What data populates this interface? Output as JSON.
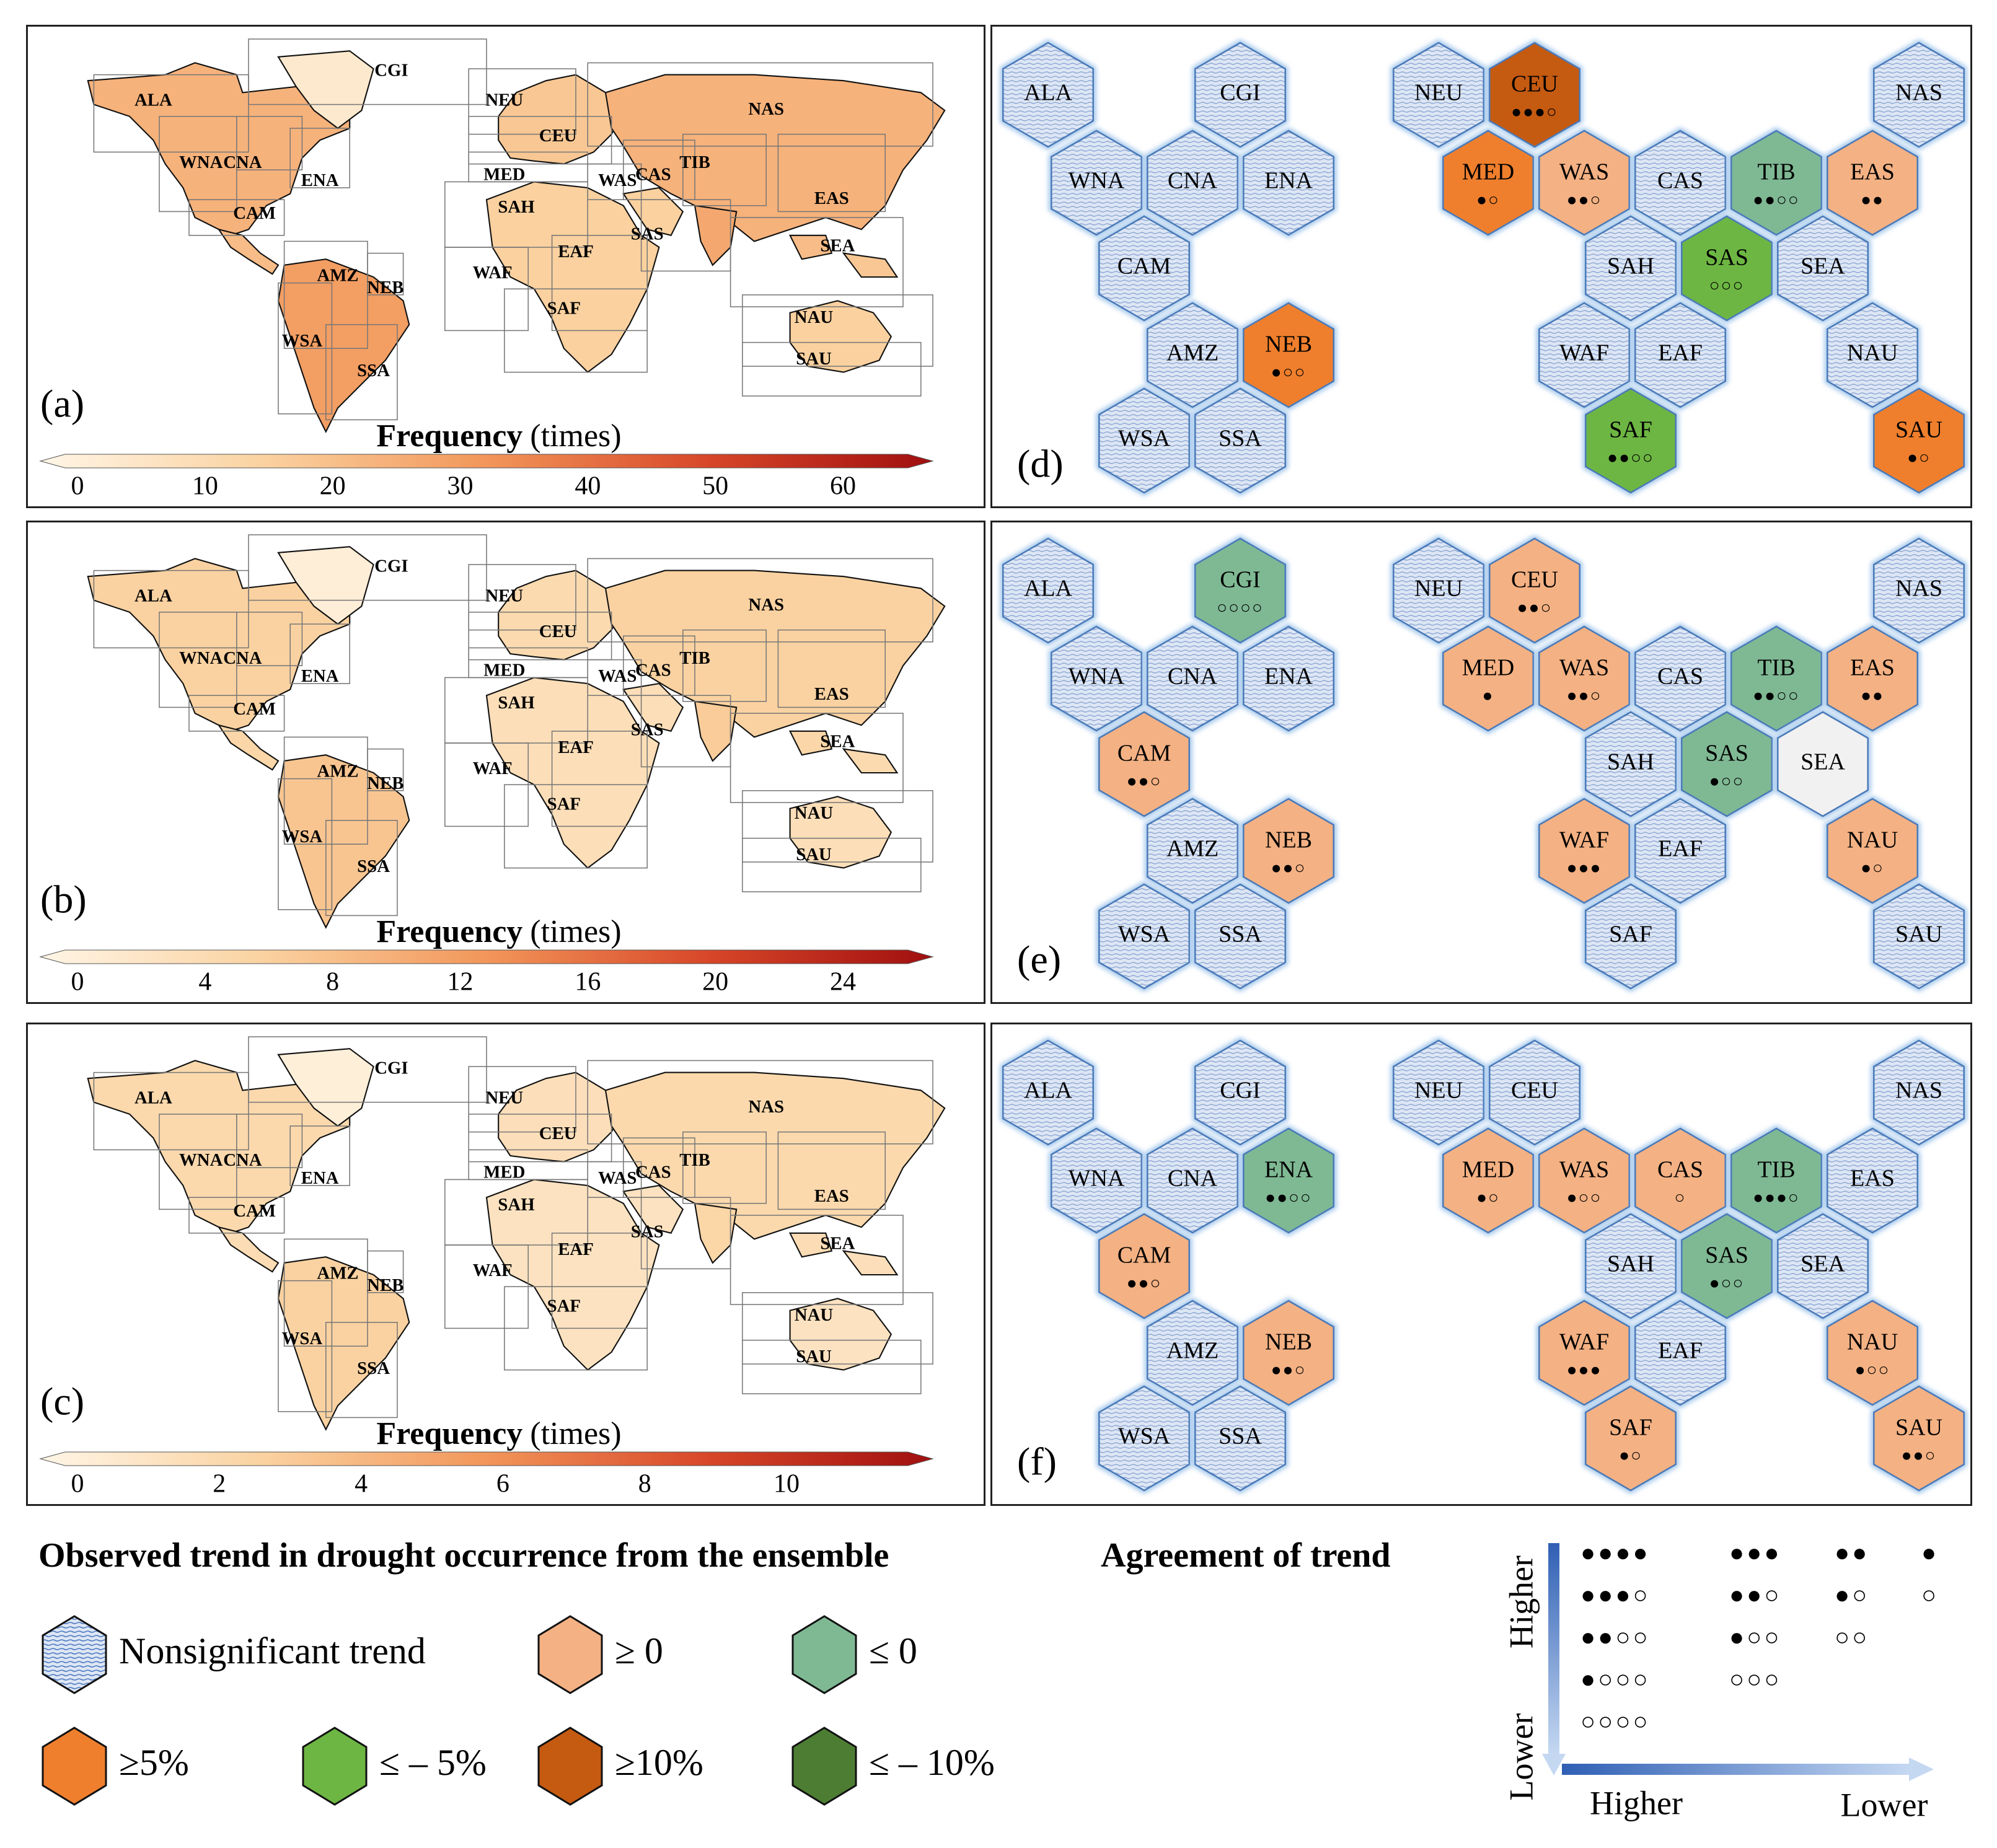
{
  "colors": {
    "nonsig": "#dde6f4",
    "pos": "#f4b183",
    "neg": "#7fb994",
    "pos5": "#ef7f2d",
    "neg5": "#6db643",
    "pos10": "#c55a11",
    "neg10": "#4d7d33",
    "neutral": "#f1f1f1"
  },
  "maps": [
    {
      "label": "(a)",
      "title": "Frequency",
      "unit": "(times)",
      "ticks": [
        "0",
        "10",
        "20",
        "30",
        "40",
        "50",
        "60"
      ],
      "intensity": "high"
    },
    {
      "label": "(b)",
      "title": "Frequency",
      "unit": "(times)",
      "ticks": [
        "0",
        "4",
        "8",
        "12",
        "16",
        "20",
        "24"
      ],
      "intensity": "mid"
    },
    {
      "label": "(c)",
      "title": "Frequency",
      "unit": "(times)",
      "ticks": [
        "0",
        "2",
        "4",
        "6",
        "8",
        "10"
      ],
      "intensity": "low"
    }
  ],
  "map_regions": [
    "CGI",
    "ALA",
    "WNA",
    "CNA",
    "ENA",
    "CAM",
    "AMZ",
    "NEB",
    "WSA",
    "SSA",
    "NEU",
    "CEU",
    "MED",
    "SAH",
    "WAF",
    "EAF",
    "SAF",
    "WAS",
    "CAS",
    "TIB",
    "NAS",
    "EAS",
    "SAS",
    "SEA",
    "NAU",
    "SAU"
  ],
  "hex_panels": [
    {
      "label": "(d)",
      "cells": [
        {
          "id": "ALA",
          "fill": "nonsig",
          "dots": ""
        },
        {
          "id": "CGI",
          "fill": "nonsig",
          "dots": ""
        },
        {
          "id": "WNA",
          "fill": "nonsig",
          "dots": ""
        },
        {
          "id": "CNA",
          "fill": "nonsig",
          "dots": ""
        },
        {
          "id": "ENA",
          "fill": "nonsig",
          "dots": ""
        },
        {
          "id": "CAM",
          "fill": "nonsig",
          "dots": ""
        },
        {
          "id": "AMZ",
          "fill": "nonsig",
          "dots": ""
        },
        {
          "id": "NEB",
          "fill": "pos5",
          "dots": "●○○"
        },
        {
          "id": "WSA",
          "fill": "nonsig",
          "dots": ""
        },
        {
          "id": "SSA",
          "fill": "nonsig",
          "dots": ""
        },
        {
          "id": "NEU",
          "fill": "nonsig",
          "dots": ""
        },
        {
          "id": "CEU",
          "fill": "pos10",
          "dots": "●●●○"
        },
        {
          "id": "NAS",
          "fill": "nonsig",
          "dots": ""
        },
        {
          "id": "MED",
          "fill": "pos5",
          "dots": "●○"
        },
        {
          "id": "WAS",
          "fill": "pos",
          "dots": "●●○"
        },
        {
          "id": "CAS",
          "fill": "nonsig",
          "dots": ""
        },
        {
          "id": "TIB",
          "fill": "neg",
          "dots": "●●○○"
        },
        {
          "id": "EAS",
          "fill": "pos",
          "dots": "●●"
        },
        {
          "id": "SAH",
          "fill": "nonsig",
          "dots": ""
        },
        {
          "id": "SAS",
          "fill": "neg5",
          "dots": "○○○"
        },
        {
          "id": "SEA",
          "fill": "nonsig",
          "dots": ""
        },
        {
          "id": "WAF",
          "fill": "nonsig",
          "dots": ""
        },
        {
          "id": "EAF",
          "fill": "nonsig",
          "dots": ""
        },
        {
          "id": "NAU",
          "fill": "nonsig",
          "dots": ""
        },
        {
          "id": "SAF",
          "fill": "neg5",
          "dots": "●●○○"
        },
        {
          "id": "SAU",
          "fill": "pos5",
          "dots": "●○"
        }
      ]
    },
    {
      "label": "(e)",
      "cells": [
        {
          "id": "ALA",
          "fill": "nonsig",
          "dots": ""
        },
        {
          "id": "CGI",
          "fill": "neg",
          "dots": "○○○○"
        },
        {
          "id": "WNA",
          "fill": "nonsig",
          "dots": ""
        },
        {
          "id": "CNA",
          "fill": "nonsig",
          "dots": ""
        },
        {
          "id": "ENA",
          "fill": "nonsig",
          "dots": ""
        },
        {
          "id": "CAM",
          "fill": "pos",
          "dots": "●●○"
        },
        {
          "id": "AMZ",
          "fill": "nonsig",
          "dots": ""
        },
        {
          "id": "NEB",
          "fill": "pos",
          "dots": "●●○"
        },
        {
          "id": "WSA",
          "fill": "nonsig",
          "dots": ""
        },
        {
          "id": "SSA",
          "fill": "nonsig",
          "dots": ""
        },
        {
          "id": "NEU",
          "fill": "nonsig",
          "dots": ""
        },
        {
          "id": "CEU",
          "fill": "pos",
          "dots": "●●○"
        },
        {
          "id": "NAS",
          "fill": "nonsig",
          "dots": ""
        },
        {
          "id": "MED",
          "fill": "pos",
          "dots": "●"
        },
        {
          "id": "WAS",
          "fill": "pos",
          "dots": "●●○"
        },
        {
          "id": "CAS",
          "fill": "nonsig",
          "dots": ""
        },
        {
          "id": "TIB",
          "fill": "neg",
          "dots": "●●○○"
        },
        {
          "id": "EAS",
          "fill": "pos",
          "dots": "●●"
        },
        {
          "id": "SAH",
          "fill": "nonsig",
          "dots": ""
        },
        {
          "id": "SAS",
          "fill": "neg",
          "dots": "●○○"
        },
        {
          "id": "SEA",
          "fill": "neutral",
          "dots": ""
        },
        {
          "id": "WAF",
          "fill": "pos",
          "dots": "●●●"
        },
        {
          "id": "EAF",
          "fill": "nonsig",
          "dots": ""
        },
        {
          "id": "NAU",
          "fill": "pos",
          "dots": "●○"
        },
        {
          "id": "SAF",
          "fill": "nonsig",
          "dots": ""
        },
        {
          "id": "SAU",
          "fill": "nonsig",
          "dots": ""
        }
      ]
    },
    {
      "label": "(f)",
      "cells": [
        {
          "id": "ALA",
          "fill": "nonsig",
          "dots": ""
        },
        {
          "id": "CGI",
          "fill": "nonsig",
          "dots": ""
        },
        {
          "id": "WNA",
          "fill": "nonsig",
          "dots": ""
        },
        {
          "id": "CNA",
          "fill": "nonsig",
          "dots": ""
        },
        {
          "id": "ENA",
          "fill": "neg",
          "dots": "●●○○"
        },
        {
          "id": "CAM",
          "fill": "pos",
          "dots": "●●○"
        },
        {
          "id": "AMZ",
          "fill": "nonsig",
          "dots": ""
        },
        {
          "id": "NEB",
          "fill": "pos",
          "dots": "●●○"
        },
        {
          "id": "WSA",
          "fill": "nonsig",
          "dots": ""
        },
        {
          "id": "SSA",
          "fill": "nonsig",
          "dots": ""
        },
        {
          "id": "NEU",
          "fill": "nonsig",
          "dots": ""
        },
        {
          "id": "CEU",
          "fill": "nonsig",
          "dots": ""
        },
        {
          "id": "NAS",
          "fill": "nonsig",
          "dots": ""
        },
        {
          "id": "MED",
          "fill": "pos",
          "dots": "●○"
        },
        {
          "id": "WAS",
          "fill": "pos",
          "dots": "●○○"
        },
        {
          "id": "CAS",
          "fill": "pos",
          "dots": "○"
        },
        {
          "id": "TIB",
          "fill": "neg",
          "dots": "●●●○"
        },
        {
          "id": "EAS",
          "fill": "nonsig",
          "dots": ""
        },
        {
          "id": "SAH",
          "fill": "nonsig",
          "dots": ""
        },
        {
          "id": "SAS",
          "fill": "neg",
          "dots": "●○○"
        },
        {
          "id": "SEA",
          "fill": "nonsig",
          "dots": ""
        },
        {
          "id": "WAF",
          "fill": "pos",
          "dots": "●●●"
        },
        {
          "id": "EAF",
          "fill": "nonsig",
          "dots": ""
        },
        {
          "id": "NAU",
          "fill": "pos",
          "dots": "●○○"
        },
        {
          "id": "SAF",
          "fill": "pos",
          "dots": "●○"
        },
        {
          "id": "SAU",
          "fill": "pos",
          "dots": "●●○"
        }
      ]
    }
  ],
  "legend": {
    "title": "Observed trend in drought occurrence from the ensemble",
    "items": [
      {
        "fill": "nonsig",
        "label": "Nonsignificant trend"
      },
      {
        "fill": "pos",
        "label": "≥ 0"
      },
      {
        "fill": "neg",
        "label": "≤ 0"
      },
      {
        "fill": "pos5",
        "label": "≥5%"
      },
      {
        "fill": "neg5",
        "label": "≤ – 5%"
      },
      {
        "fill": "pos10",
        "label": "≥10%"
      },
      {
        "fill": "neg10",
        "label": "≤ – 10%"
      }
    ]
  },
  "agreement": {
    "title": "Agreement of trend",
    "y_high": "Higher",
    "y_low": "Lower",
    "x_high": "Higher",
    "x_low": "Lower",
    "rows": [
      [
        "●●●●",
        "●●●",
        "●●",
        "●"
      ],
      [
        "●●●○",
        "●●○",
        "●○",
        "○"
      ],
      [
        "●●○○",
        "●○○",
        "○○"
      ],
      [
        "●○○○",
        "○○○"
      ],
      [
        "○○○○"
      ]
    ]
  }
}
